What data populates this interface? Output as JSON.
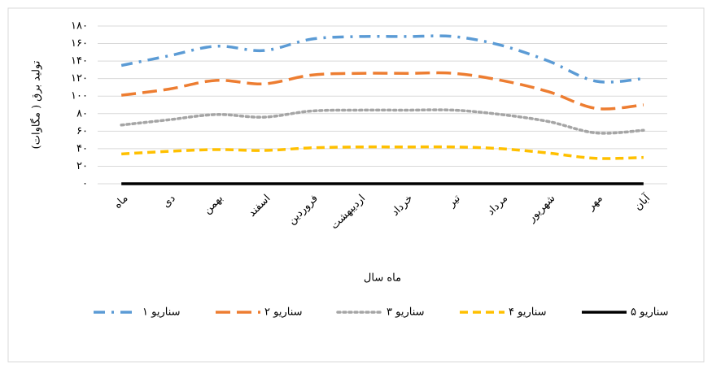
{
  "chart_data": {
    "type": "line",
    "x_label": "ماه سال",
    "y_label": "تولید برق ( مگاوات)",
    "categories": [
      "ماه",
      "دی",
      "بهمن",
      "اسفند",
      "فروردین",
      "اردیبهشت",
      "خرداد",
      "تیر",
      "مرداد",
      "شهریور",
      "مهر",
      "آبان"
    ],
    "series": [
      {
        "name": "سناریو ۱",
        "color": "#5b9bd5",
        "dash": "dash-dot",
        "values": [
          135,
          146,
          157,
          152,
          165,
          168,
          168,
          168,
          158,
          140,
          117,
          120
        ]
      },
      {
        "name": "سناریو ۲",
        "color": "#ed7d31",
        "dash": "long-dash",
        "values": [
          101,
          108,
          118,
          114,
          124,
          126,
          126,
          126,
          118,
          105,
          86,
          90
        ]
      },
      {
        "name": "سناریو ۳",
        "color": "#a5a5a5",
        "dash": "dot",
        "values": [
          67,
          73,
          79,
          76,
          83,
          84,
          84,
          84,
          79,
          71,
          58,
          61
        ]
      },
      {
        "name": "سناریو ۴",
        "color": "#ffc000",
        "dash": "dash",
        "values": [
          34,
          37,
          39,
          38,
          41,
          42,
          42,
          42,
          40,
          35,
          29,
          30
        ]
      },
      {
        "name": "سناریو ۵",
        "color": "#000000",
        "dash": "solid",
        "values": [
          0,
          0,
          0,
          0,
          0,
          0,
          0,
          0,
          0,
          0,
          0,
          0
        ]
      }
    ],
    "ylim": [
      0,
      180
    ],
    "yticks": [
      {
        "value": 0,
        "label": "۰"
      },
      {
        "value": 20,
        "label": "۲۰"
      },
      {
        "value": 40,
        "label": "۴۰"
      },
      {
        "value": 60,
        "label": "۶۰"
      },
      {
        "value": 80,
        "label": "۸۰"
      },
      {
        "value": 100,
        "label": "۱۰۰"
      },
      {
        "value": 120,
        "label": "۱۲۰"
      },
      {
        "value": 140,
        "label": "۱۴۰"
      },
      {
        "value": 160,
        "label": "۱۶۰"
      },
      {
        "value": 180,
        "label": "۱۸۰"
      }
    ],
    "grid": true,
    "legend": "bottom"
  }
}
